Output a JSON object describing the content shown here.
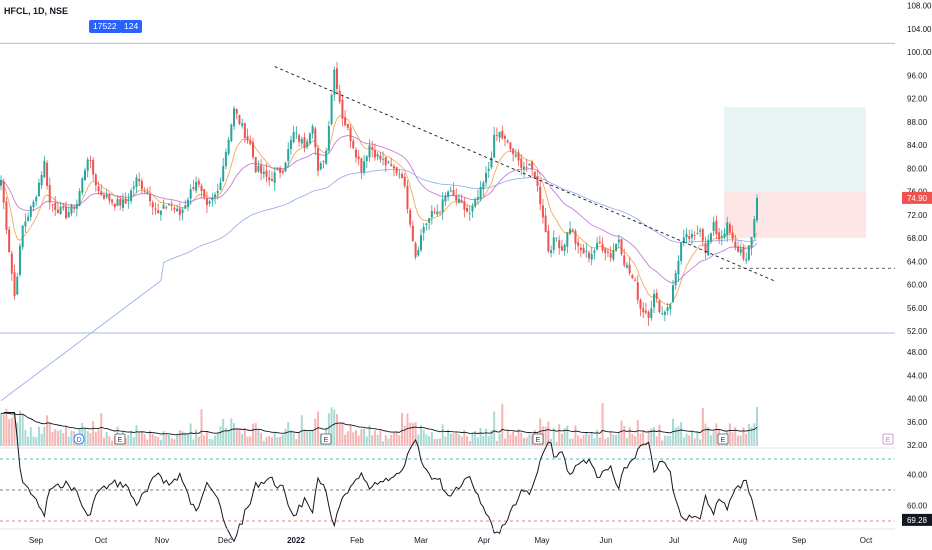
{
  "header": {
    "symbol_line": "HFCL, 1D, NSE",
    "pill_a": "17522",
    "pill_b": "124"
  },
  "badges": {
    "price": "74.90",
    "rsi": "69.28"
  },
  "colors": {
    "up": "#26a69a",
    "down": "#ef5350",
    "ma_short": "#f5a95c",
    "ma_mid": "#c77dd8",
    "ma_long": "#8fa8ea",
    "trend": "#131722",
    "target_zone": "#e8f4f3",
    "stop_zone": "#fde6e6",
    "badge": "#ef5350"
  },
  "chart_data": [
    {
      "type": "candlestick",
      "price_axis_ticks": [
        "108.00",
        "104.00",
        "100.00",
        "96.00",
        "92.00",
        "88.00",
        "84.00",
        "80.00",
        "76.00",
        "72.00",
        "68.00",
        "64.00",
        "60.00",
        "56.00",
        "52.00"
      ],
      "ylim": [
        51,
        108
      ],
      "time_axis_labels": [
        "Sep",
        "Oct",
        "Nov",
        "Dec",
        "2022",
        "Feb",
        "Mar",
        "Apr",
        "May",
        "Jun",
        "Jul",
        "Aug",
        "Sep",
        "Oct"
      ],
      "horizontal_lines": {
        "resistance": 101.5,
        "support": 62.8
      },
      "trendline": {
        "from_date": "2022-01-17",
        "from_price": 97.5,
        "to_date": "2022-10-03",
        "to_price": 60.5
      },
      "position_tool": {
        "entry": 76.0,
        "target": 90.5,
        "stop": 68.0
      },
      "last_close": 74.9,
      "series": [
        "EMA short",
        "EMA mid",
        "EMA long"
      ]
    },
    {
      "type": "volume",
      "volume_axis_ticks": [
        "48.00",
        "44.00",
        "40.00",
        "36.00",
        "32.00"
      ]
    },
    {
      "type": "line",
      "name": "RSI",
      "rsi_axis_ticks": [
        "60.00",
        "40.00"
      ],
      "levels": [
        70,
        50,
        30
      ],
      "last_value": 69.28
    }
  ]
}
